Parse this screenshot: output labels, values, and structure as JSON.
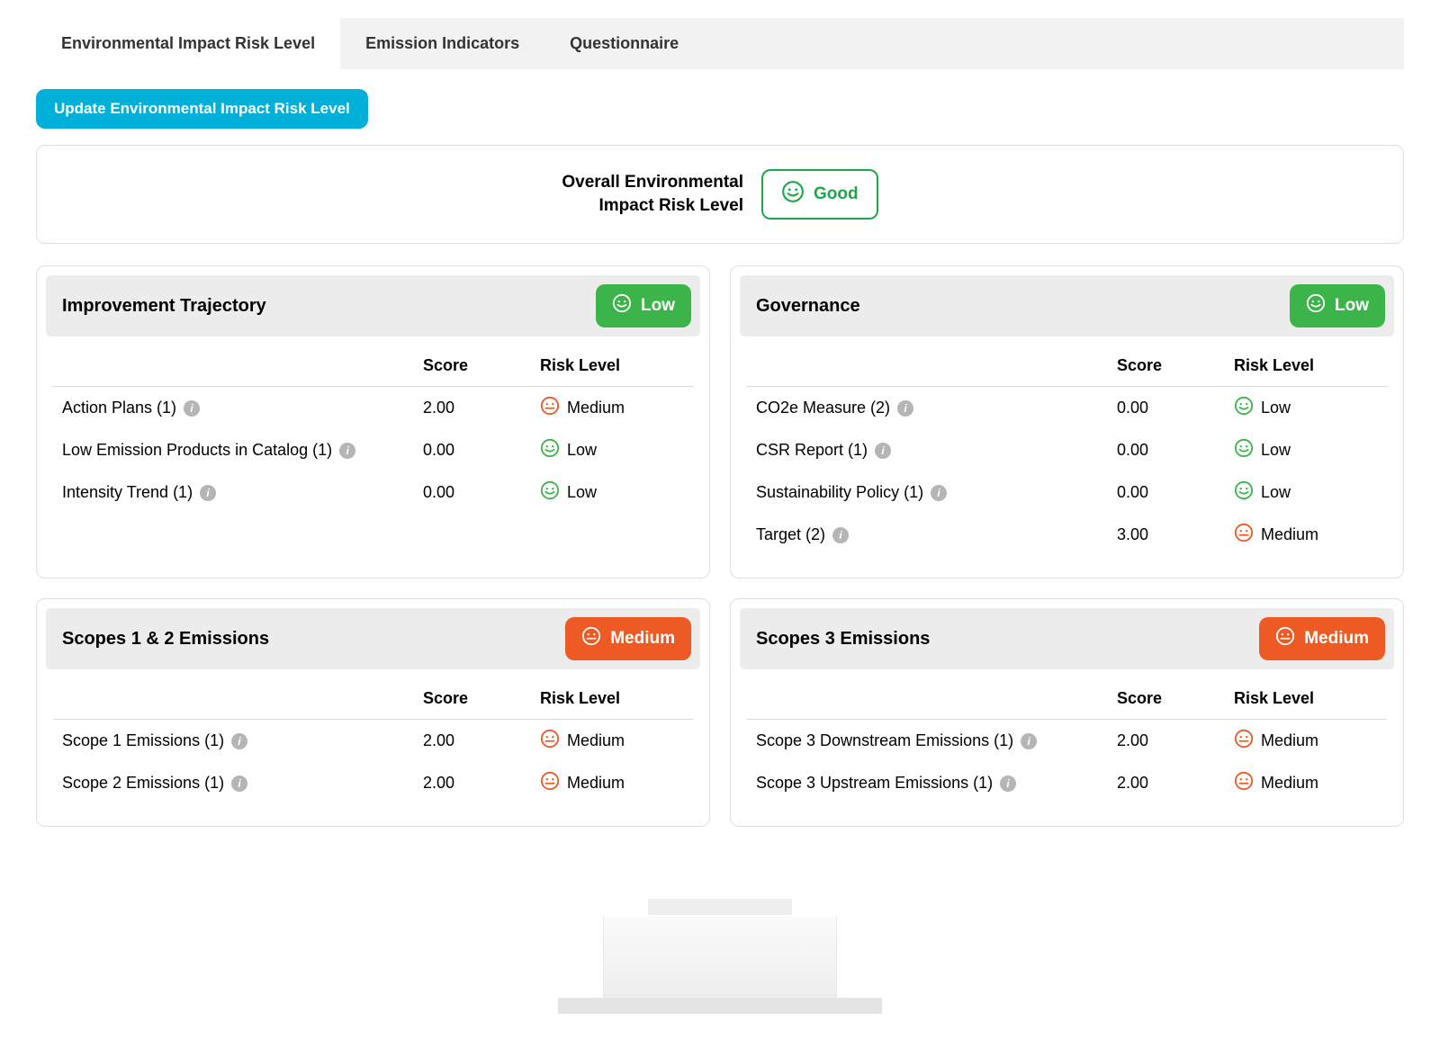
{
  "tabs": {
    "items": [
      {
        "label": "Environmental Impact Risk Level",
        "active": true
      },
      {
        "label": "Emission Indicators",
        "active": false
      },
      {
        "label": "Questionnaire",
        "active": false
      }
    ]
  },
  "update_button_label": "Update Environmental Impact Risk Level",
  "overall": {
    "label_line1": "Overall Environmental",
    "label_line2": "Impact Risk Level",
    "value": "Good",
    "risk": "good",
    "border_color": "#1fa648",
    "text_color": "#1fa648"
  },
  "columns": {
    "score": "Score",
    "risk": "Risk Level"
  },
  "risk_styles": {
    "low": {
      "badge_bg": "#3bb54a",
      "face_color": "#3bb54a",
      "label": "Low"
    },
    "medium": {
      "badge_bg": "#ee5a24",
      "face_color": "#ee5a24",
      "label": "Medium"
    },
    "good": {
      "badge_bg": "#1fa648",
      "face_color": "#1fa648",
      "label": "Good"
    }
  },
  "cards": [
    {
      "title": "Improvement Trajectory",
      "risk": "low",
      "rows": [
        {
          "name": "Action Plans (1)",
          "score": "2.00",
          "risk": "medium"
        },
        {
          "name": "Low Emission Products in Catalog (1)",
          "score": "0.00",
          "risk": "low"
        },
        {
          "name": "Intensity Trend (1)",
          "score": "0.00",
          "risk": "low"
        }
      ]
    },
    {
      "title": "Governance",
      "risk": "low",
      "rows": [
        {
          "name": "CO2e Measure (2)",
          "score": "0.00",
          "risk": "low"
        },
        {
          "name": "CSR Report (1)",
          "score": "0.00",
          "risk": "low"
        },
        {
          "name": "Sustainability Policy (1)",
          "score": "0.00",
          "risk": "low"
        },
        {
          "name": "Target (2)",
          "score": "3.00",
          "risk": "medium"
        }
      ]
    },
    {
      "title": "Scopes 1 & 2 Emissions",
      "risk": "medium",
      "rows": [
        {
          "name": "Scope 1 Emissions (1)",
          "score": "2.00",
          "risk": "medium"
        },
        {
          "name": "Scope 2 Emissions (1)",
          "score": "2.00",
          "risk": "medium"
        }
      ]
    },
    {
      "title": "Scopes 3 Emissions",
      "risk": "medium",
      "rows": [
        {
          "name": "Scope 3 Downstream Emissions (1)",
          "score": "2.00",
          "risk": "medium"
        },
        {
          "name": "Scope 3 Upstream Emissions (1)",
          "score": "2.00",
          "risk": "medium"
        }
      ]
    }
  ],
  "colors": {
    "tab_inactive_bg": "#f2f2f2",
    "tab_active_bg": "#ffffff",
    "update_btn_bg": "#00b0d8",
    "card_border": "#e0e0e0",
    "card_header_bg": "#ececec",
    "info_icon_bg": "#b5b5b5",
    "divider": "#d9d9d9"
  }
}
